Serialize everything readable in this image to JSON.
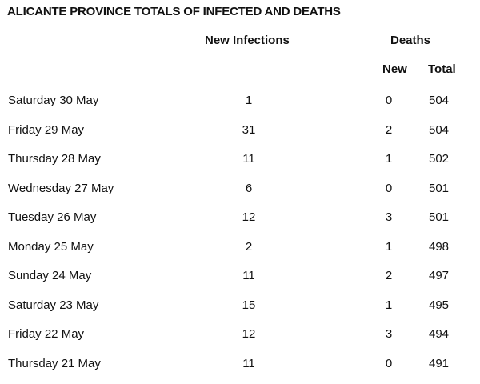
{
  "title": "ALICANTE PROVINCE TOTALS OF INFECTED AND DEATHS",
  "headers": {
    "new_infections": "New Infections",
    "deaths": "Deaths",
    "deaths_new": "New",
    "deaths_total": "Total"
  },
  "rows": [
    {
      "date": "Saturday 30 May",
      "new_infections": "1",
      "deaths_new": "0",
      "deaths_total": "504"
    },
    {
      "date": "Friday 29 May",
      "new_infections": "31",
      "deaths_new": "2",
      "deaths_total": "504"
    },
    {
      "date": "Thursday 28 May",
      "new_infections": "11",
      "deaths_new": "1",
      "deaths_total": "502"
    },
    {
      "date": "Wednesday 27 May",
      "new_infections": "6",
      "deaths_new": "0",
      "deaths_total": "501"
    },
    {
      "date": "Tuesday 26 May",
      "new_infections": "12",
      "deaths_new": "3",
      "deaths_total": "501"
    },
    {
      "date": "Monday 25 May",
      "new_infections": "2",
      "deaths_new": "1",
      "deaths_total": "498"
    },
    {
      "date": "Sunday 24 May",
      "new_infections": "11",
      "deaths_new": "2",
      "deaths_total": "497"
    },
    {
      "date": "Saturday 23 May",
      "new_infections": "15",
      "deaths_new": "1",
      "deaths_total": "495"
    },
    {
      "date": "Friday 22 May",
      "new_infections": "12",
      "deaths_new": "3",
      "deaths_total": "494"
    },
    {
      "date": "Thursday 21 May",
      "new_infections": "11",
      "deaths_new": "0",
      "deaths_total": "491"
    }
  ]
}
